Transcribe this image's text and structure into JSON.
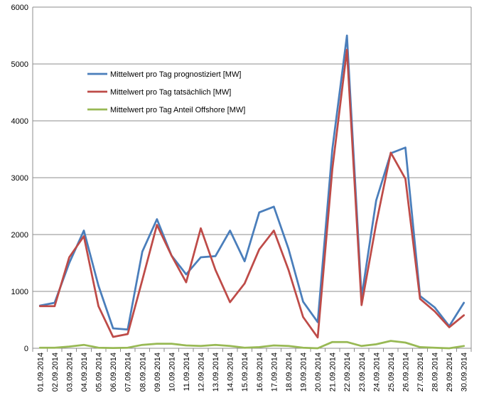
{
  "chart_data": {
    "type": "line",
    "title": "",
    "xlabel": "",
    "ylabel": "",
    "ylim": [
      0,
      6000
    ],
    "yticks": [
      0,
      1000,
      2000,
      3000,
      4000,
      5000,
      6000
    ],
    "grid": "horizontal",
    "legend_position": "upper-left inside plot",
    "categories": [
      "01.09.2014",
      "02.09.2014",
      "03.09.2014",
      "04.09.2014",
      "05.09.2014",
      "06.09.2014",
      "07.09.2014",
      "08.09.2014",
      "09.09.2014",
      "10.09.2014",
      "11.09.2014",
      "12.09.2014",
      "13.09.2014",
      "14.09.2014",
      "15.09.2014",
      "16.09.2014",
      "17.09.2014",
      "18.09.2014",
      "19.09.2014",
      "20.09.2014",
      "21.09.2014",
      "22.09.2014",
      "23.09.2014",
      "24.09.2014",
      "25.09.2014",
      "26.09.2014",
      "27.09.2014",
      "28.09.2014",
      "29.09.2014",
      "30.09.2014"
    ],
    "series": [
      {
        "name": "Mittelwert pro Tag prognostiziert [MW]",
        "color": "#4a7ebb",
        "values": [
          750,
          800,
          1500,
          2070,
          1100,
          350,
          330,
          1700,
          2270,
          1630,
          1300,
          1600,
          1620,
          2070,
          1530,
          2390,
          2490,
          1750,
          820,
          460,
          3500,
          5500,
          900,
          2600,
          3430,
          3530,
          920,
          720,
          390,
          800
        ]
      },
      {
        "name": "Mittelwert pro Tag tatsächlich [MW]",
        "color": "#be4b48",
        "values": [
          740,
          740,
          1600,
          1970,
          740,
          200,
          250,
          1200,
          2170,
          1630,
          1160,
          2110,
          1380,
          810,
          1140,
          1740,
          2070,
          1380,
          550,
          190,
          3150,
          5250,
          760,
          2190,
          3440,
          2980,
          870,
          650,
          370,
          580
        ]
      },
      {
        "name": "Mittelwert pro Tag Anteil Offshore [MW]",
        "color": "#98b954",
        "values": [
          10,
          10,
          30,
          60,
          10,
          5,
          10,
          60,
          80,
          80,
          50,
          40,
          60,
          40,
          10,
          20,
          50,
          40,
          10,
          0,
          110,
          110,
          40,
          70,
          130,
          100,
          20,
          10,
          0,
          40
        ]
      }
    ]
  }
}
